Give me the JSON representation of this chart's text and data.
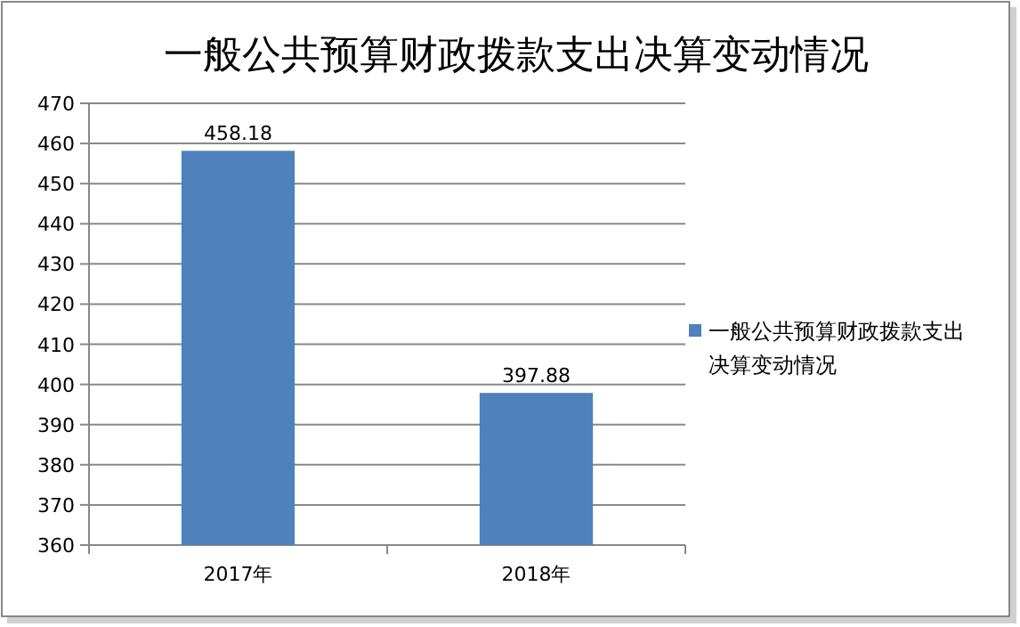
{
  "chart_data": {
    "type": "bar",
    "title": "一般公共预算财政拨款支出决算变动情况",
    "categories": [
      "2017年",
      "2018年"
    ],
    "series": [
      {
        "name": "一般公共预算财政拨款支出决算变动情况",
        "color": "#4f81bd",
        "values": [
          458.18,
          397.88
        ]
      }
    ],
    "ylim": [
      360,
      470
    ],
    "yticks": [
      360,
      370,
      380,
      390,
      400,
      410,
      420,
      430,
      440,
      450,
      460,
      470
    ],
    "grid": "y",
    "legend": "right",
    "data_labels": true
  }
}
